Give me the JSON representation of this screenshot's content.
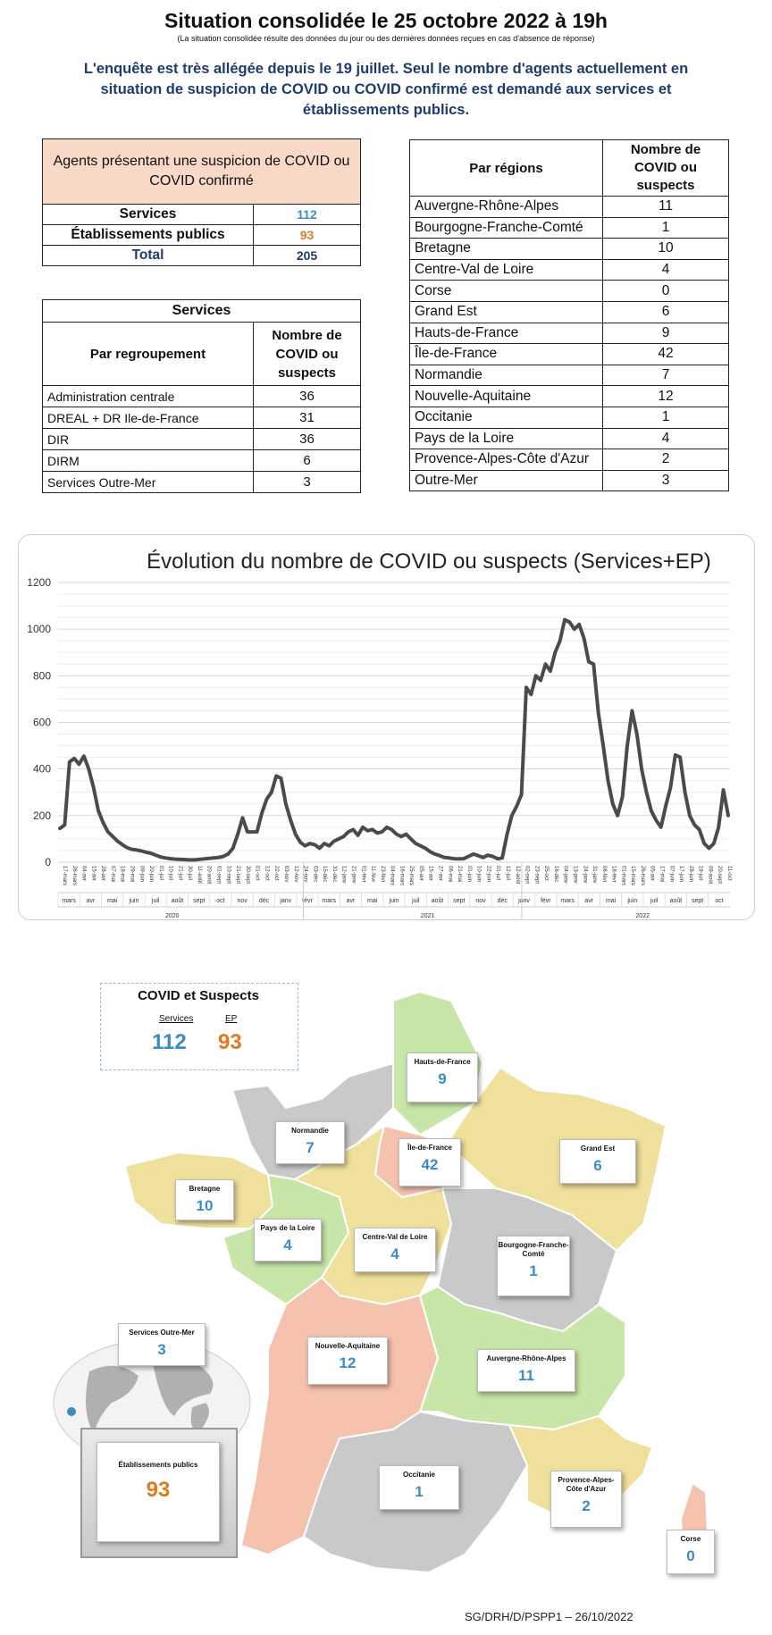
{
  "header": {
    "title": "Situation consolidée le 25 octobre 2022 à 19h",
    "subtitle": "(La situation consolidée résulte des données du jour ou des dernières données reçues en cas d'absence de réponse)",
    "notice": "L'enquête est très allégée depuis le 19 juillet. Seul le nombre d'agents actuellement en situation de suspicion de COVID ou COVID confirmé est demandé aux services et établissements publics."
  },
  "summary": {
    "heading": "Agents présentant une suspicion de COVID ou COVID confirmé",
    "rows": [
      {
        "label": "Services",
        "value": "112",
        "color": "#3a8cc4"
      },
      {
        "label": "Établissements publics",
        "value": "93",
        "color": "#e07a1f"
      },
      {
        "label": "Total",
        "value": "205",
        "color": "#1f3b6e"
      }
    ]
  },
  "services": {
    "caption": "Services",
    "col1": "Par regroupement",
    "col2": "Nombre de COVID ou suspects",
    "rows": [
      {
        "name": "Administration centrale",
        "value": "36"
      },
      {
        "name": "DREAL + DR Ile-de-France",
        "value": "31"
      },
      {
        "name": "DIR",
        "value": "36"
      },
      {
        "name": "DIRM",
        "value": "6"
      },
      {
        "name": "Services Outre-Mer",
        "value": "3"
      }
    ]
  },
  "regions": {
    "col1": "Par régions",
    "col2": "Nombre de COVID ou suspects",
    "rows": [
      {
        "name": "Auvergne-Rhône-Alpes",
        "value": "11"
      },
      {
        "name": "Bourgogne-Franche-Comté",
        "value": "1"
      },
      {
        "name": "Bretagne",
        "value": "10"
      },
      {
        "name": "Centre-Val de Loire",
        "value": "4"
      },
      {
        "name": "Corse",
        "value": "0"
      },
      {
        "name": "Grand Est",
        "value": "6"
      },
      {
        "name": "Hauts-de-France",
        "value": "9"
      },
      {
        "name": "Île-de-France",
        "value": "42"
      },
      {
        "name": "Normandie",
        "value": "7"
      },
      {
        "name": "Nouvelle-Aquitaine",
        "value": "12"
      },
      {
        "name": "Occitanie",
        "value": "1"
      },
      {
        "name": "Pays de la Loire",
        "value": "4"
      },
      {
        "name": "Provence-Alpes-Côte d'Azur",
        "value": "2"
      },
      {
        "name": "Outre-Mer",
        "value": "3"
      }
    ]
  },
  "chart_data": {
    "type": "line",
    "title": "Évolution du nombre de COVID ou suspects (Services+EP)",
    "ylim": [
      0,
      1200
    ],
    "yticks": [
      0,
      200,
      400,
      600,
      800,
      1000,
      1200
    ],
    "grid": true,
    "series": [
      {
        "color": "#4d4a4a",
        "values": [
          145,
          160,
          430,
          445,
          420,
          455,
          400,
          320,
          220,
          170,
          130,
          110,
          90,
          75,
          62,
          55,
          52,
          48,
          42,
          38,
          30,
          22,
          18,
          15,
          13,
          12,
          11,
          10,
          10,
          12,
          14,
          16,
          18,
          20,
          25,
          35,
          60,
          120,
          190,
          130,
          130,
          130,
          210,
          270,
          300,
          370,
          360,
          250,
          180,
          120,
          85,
          70,
          80,
          75,
          60,
          80,
          70,
          90,
          100,
          110,
          130,
          140,
          115,
          150,
          135,
          140,
          125,
          130,
          150,
          140,
          120,
          110,
          120,
          100,
          80,
          70,
          60,
          45,
          35,
          28,
          20,
          18,
          15,
          14,
          15,
          25,
          35,
          28,
          20,
          30,
          25,
          15,
          18,
          120,
          200,
          240,
          290,
          750,
          720,
          800,
          780,
          850,
          820,
          900,
          950,
          1040,
          1030,
          1000,
          1020,
          960,
          860,
          850,
          640,
          500,
          350,
          250,
          200,
          280,
          500,
          650,
          550,
          400,
          300,
          220,
          180,
          150,
          240,
          320,
          460,
          450,
          300,
          200,
          160,
          140,
          80,
          60,
          80,
          150,
          310,
          200
        ]
      }
    ],
    "date_labels": [
      "17-mars",
      "26-mars",
      "04-avr",
      "15-avr",
      "28-avr",
      "07-mai",
      "18-mai",
      "29-mai",
      "09-juin",
      "20-juin",
      "01-juil",
      "10-juil",
      "21-juil",
      "30-juil",
      "11-août",
      "20-août",
      "01-sept",
      "10-sept",
      "21-sept",
      "30-sept",
      "01-oct",
      "12-oct",
      "22-oct",
      "03-nov",
      "12-nov",
      "24-nov",
      "03-déc",
      "15-déc",
      "31-déc",
      "12-janv",
      "21-janv",
      "01-févr",
      "11-févr",
      "23-févr",
      "04-mars",
      "16-mars",
      "25-mars",
      "05-avr",
      "15-avr",
      "27-avr",
      "06-mai",
      "21-mai",
      "01-juin",
      "10-juin",
      "22-juin",
      "01-juil",
      "12-juil",
      "12-août",
      "02-sept",
      "23-sept",
      "25-oct",
      "16-déc",
      "04-janv",
      "13-janv",
      "24-janv",
      "31-janv",
      "08-févr",
      "18-févr",
      "01-mars",
      "15-mars",
      "26-mars",
      "05-avr",
      "17-mai",
      "07-juin",
      "17-juin",
      "28-juin",
      "19-juil",
      "09-août",
      "20-sept",
      "11-oct"
    ],
    "month_labels": [
      "mars",
      "avr",
      "mai",
      "juin",
      "juil",
      "août",
      "sept",
      "oct",
      "nov",
      "déc",
      "janv",
      "févr",
      "mars",
      "avr",
      "mai",
      "juin",
      "juil",
      "août",
      "sept",
      "nov",
      "déc",
      "janv",
      "févr",
      "mars",
      "avr",
      "mai",
      "juin",
      "juil",
      "août",
      "sept",
      "oct"
    ],
    "year_labels": [
      "2020",
      "2021",
      "2022"
    ]
  },
  "map": {
    "legend": {
      "title": "COVID et Suspects",
      "services_label": "Services",
      "ep_label": "EP",
      "services_value": "112",
      "ep_value": "93"
    },
    "regions": [
      {
        "name": "Hauts-de-France",
        "value": "9",
        "fill": "#c7e6a8"
      },
      {
        "name": "Normandie",
        "value": "7",
        "fill": "#c9c9c9"
      },
      {
        "name": "Île-de-France",
        "value": "42",
        "fill": "#f5c2ad"
      },
      {
        "name": "Grand Est",
        "value": "6",
        "fill": "#efe09b"
      },
      {
        "name": "Bretagne",
        "value": "10",
        "fill": "#efe09b"
      },
      {
        "name": "Pays de la Loire",
        "value": "4",
        "fill": "#c7e6a8"
      },
      {
        "name": "Centre-Val de Loire",
        "value": "4",
        "fill": "#efe09b"
      },
      {
        "name": "Bourgogne-Franche-Comté",
        "value": "1",
        "fill": "#c9c9c9"
      },
      {
        "name": "Services Outre-Mer",
        "value": "3",
        "fill": "#c9c9c9"
      },
      {
        "name": "Nouvelle-Aquitaine",
        "value": "12",
        "fill": "#f5c2ad"
      },
      {
        "name": "Auvergne-Rhône-Alpes",
        "value": "11",
        "fill": "#c7e6a8"
      },
      {
        "name": "Occitanie",
        "value": "1",
        "fill": "#c9c9c9"
      },
      {
        "name": "Provence-Alpes-Côte d'Azur",
        "value": "2",
        "fill": "#efe09b"
      },
      {
        "name": "Corse",
        "value": "0",
        "fill": "#f5c2ad"
      }
    ],
    "ep": {
      "label": "Établissements publics",
      "value": "93"
    }
  },
  "footer": "SG/DRH/D/PSPP1 – 26/10/2022"
}
